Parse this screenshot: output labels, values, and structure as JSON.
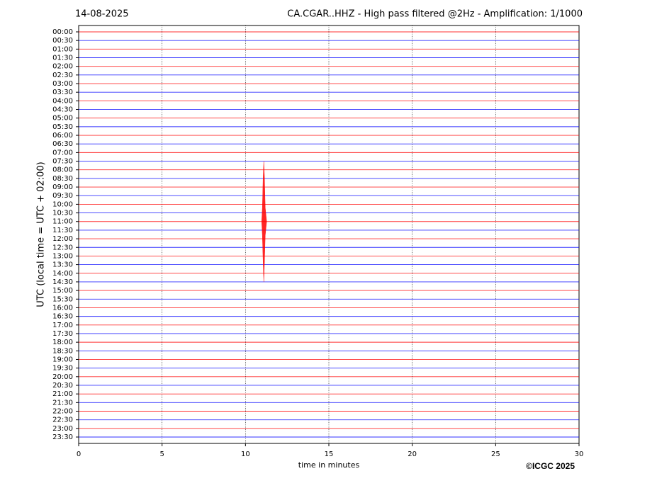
{
  "chart_data": {
    "type": "helicorder",
    "date": "14-08-2025",
    "title": "CA.CGAR..HHZ - High pass filtered @2Hz - Amplification: 1/1000",
    "ylabel": "UTC (local time = UTC + 02:00)",
    "xlabel": "time in minutes",
    "copyright": "©ICGC 2025",
    "categories": [
      "00:00",
      "00:30",
      "01:00",
      "01:30",
      "02:00",
      "02:30",
      "03:00",
      "03:30",
      "04:00",
      "04:30",
      "05:00",
      "05:30",
      "06:00",
      "06:30",
      "07:00",
      "07:30",
      "08:00",
      "08:30",
      "09:00",
      "09:30",
      "10:00",
      "10:30",
      "11:00",
      "11:30",
      "12:00",
      "12:30",
      "13:00",
      "13:30",
      "14:00",
      "14:30",
      "15:00",
      "15:30",
      "16:00",
      "16:30",
      "17:00",
      "17:30",
      "18:00",
      "18:30",
      "19:00",
      "19:30",
      "20:00",
      "20:30",
      "21:00",
      "21:30",
      "22:00",
      "22:30",
      "23:00",
      "23:30"
    ],
    "colors": [
      "#ff0000",
      "#0000ff"
    ],
    "xlim": [
      0,
      30
    ],
    "xticks": [
      0,
      5,
      10,
      15,
      20,
      25,
      30
    ],
    "grid": true,
    "event_x": 11.1,
    "event_rows": [
      "07:30",
      "11:00",
      "14:30"
    ]
  }
}
